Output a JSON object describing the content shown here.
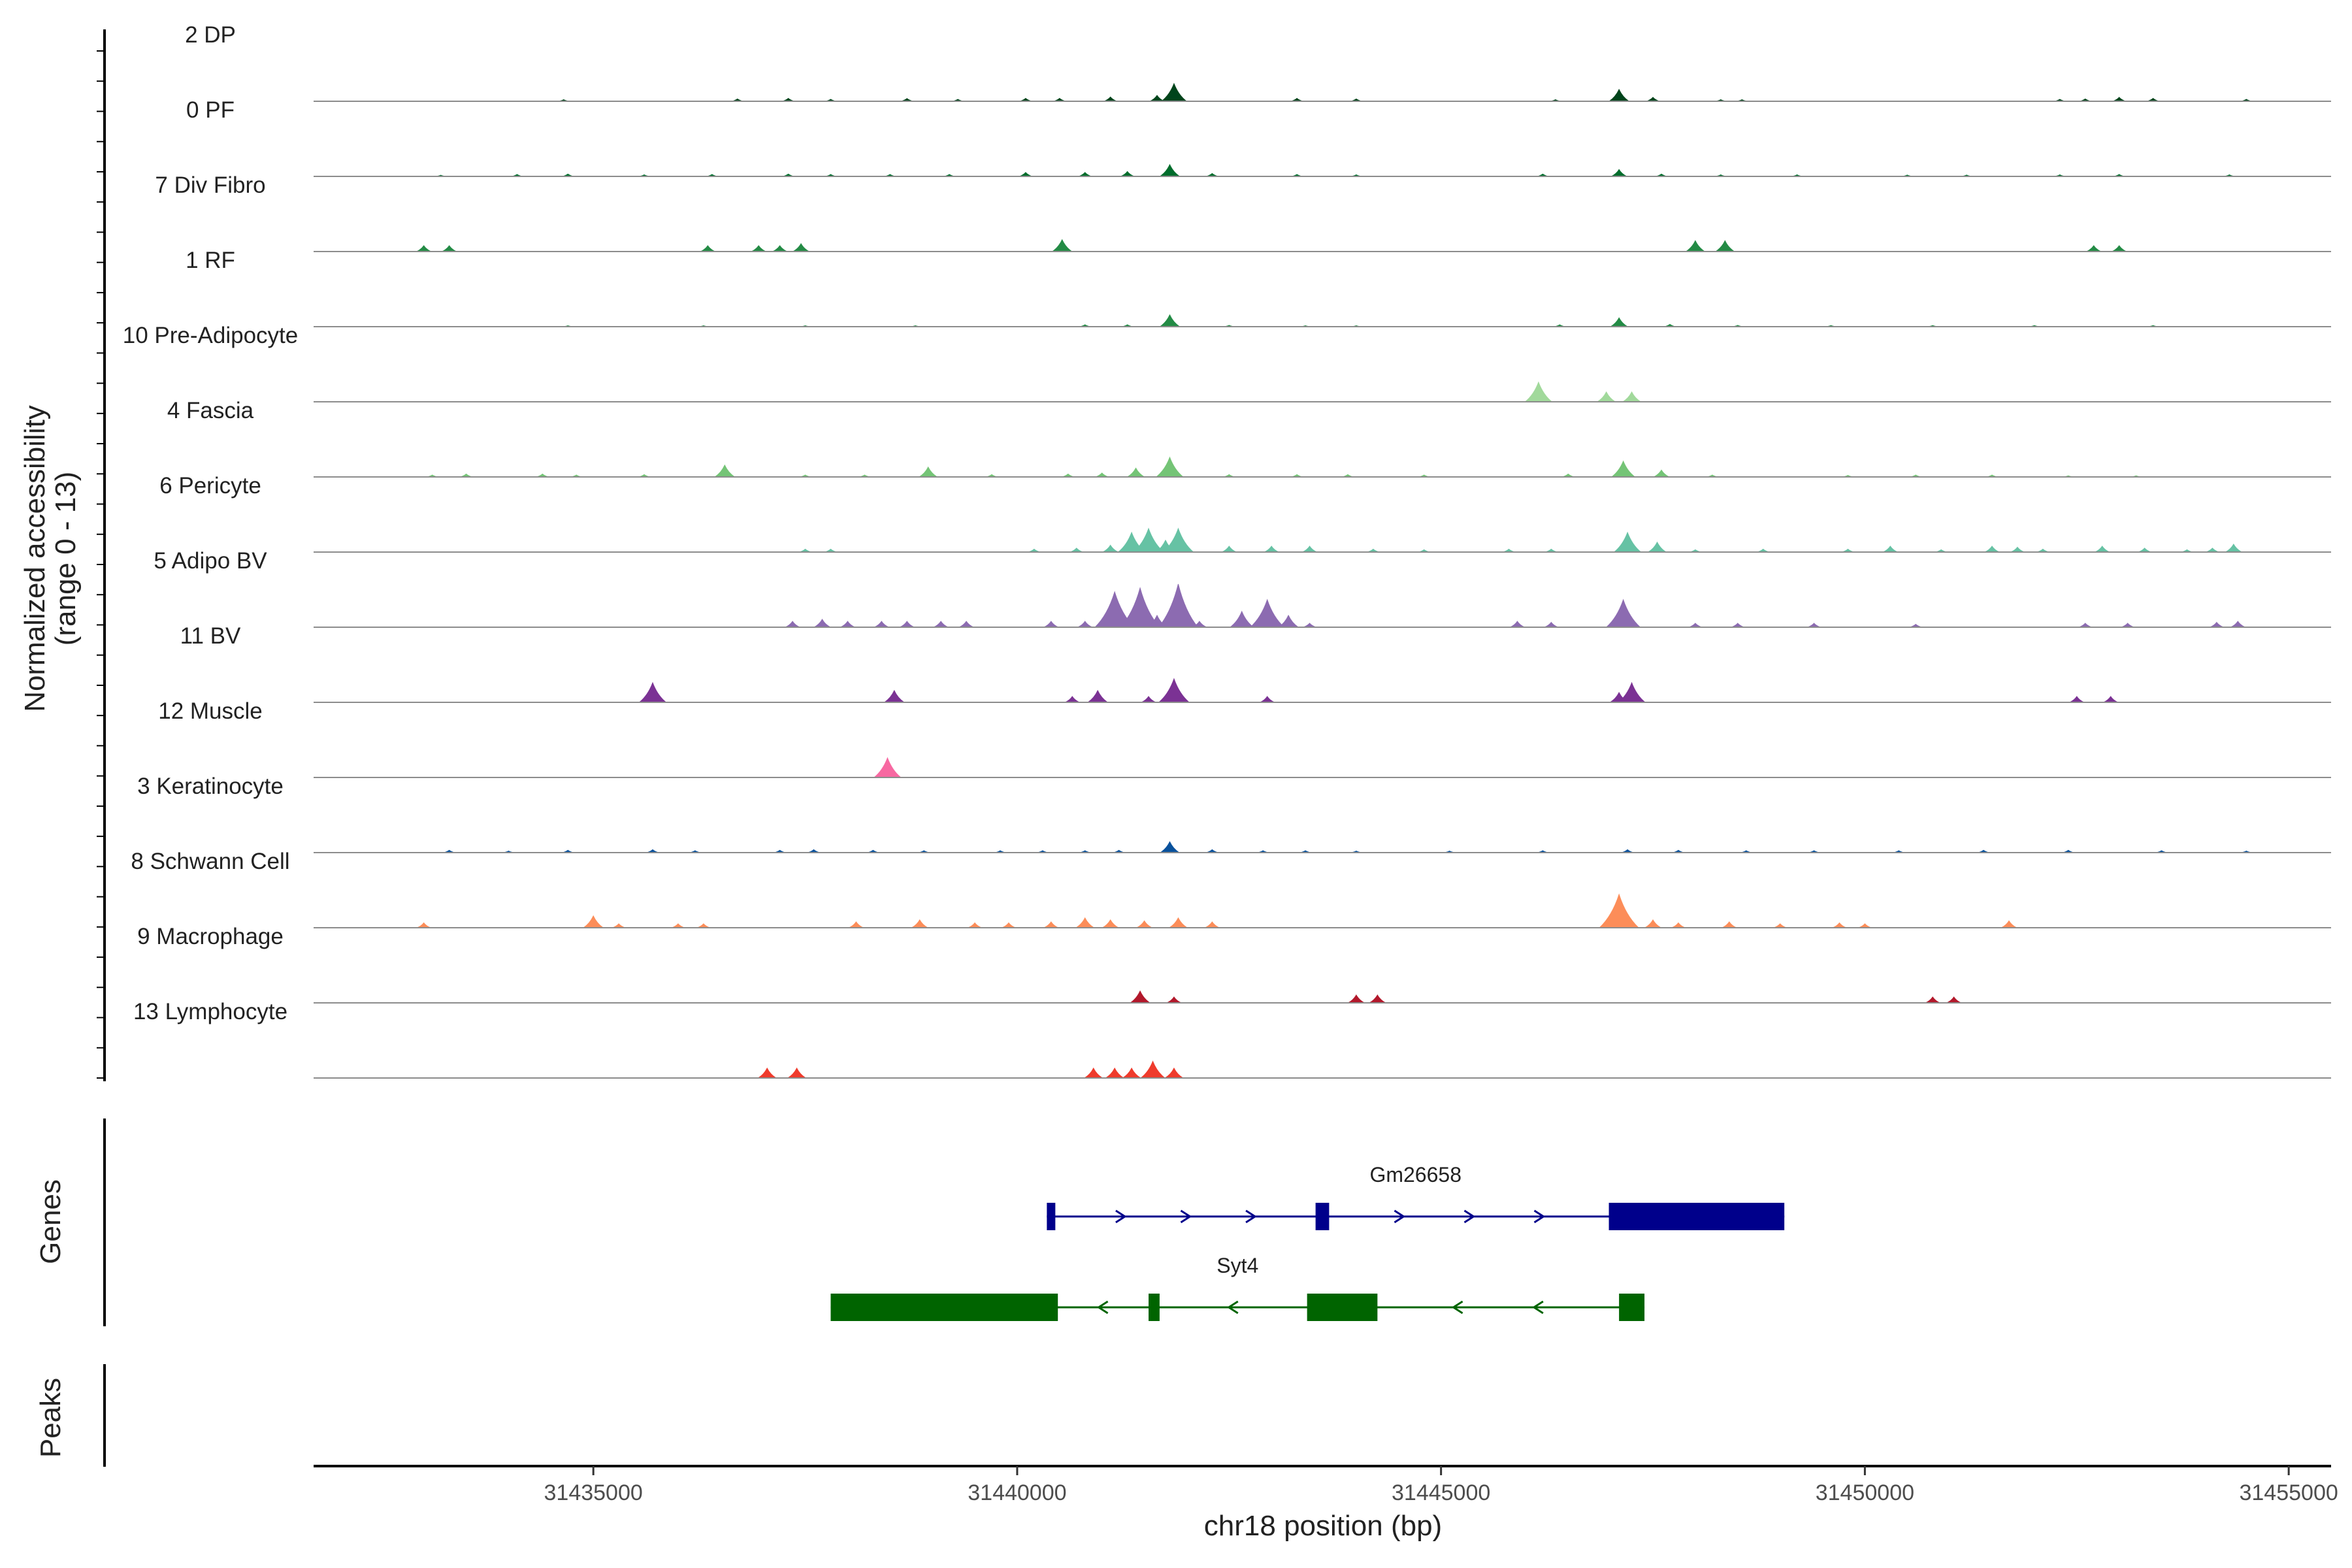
{
  "chart_data": {
    "type": "area",
    "title": "",
    "ylabel_line1": "Normalized accessibility",
    "ylabel_line2": "(range 0 - 13)",
    "xlabel": "chr18 position (bp)",
    "genes_label": "Genes",
    "peaks_label": "Peaks",
    "xlim": [
      31431700,
      31455500
    ],
    "x_ticks": [
      31435000,
      31440000,
      31445000,
      31450000,
      31455000
    ],
    "x_tick_labels": [
      "31435000",
      "31440000",
      "31445000",
      "31450000",
      "31455000"
    ],
    "tracks": [
      {
        "name": "2 DP",
        "color": "#00441b",
        "signal": [
          [
            31434650,
            0.08
          ],
          [
            31436700,
            0.12
          ],
          [
            31437300,
            0.15
          ],
          [
            31437800,
            0.1
          ],
          [
            31438700,
            0.14
          ],
          [
            31439300,
            0.1
          ],
          [
            31440100,
            0.15
          ],
          [
            31440500,
            0.15
          ],
          [
            31441100,
            0.22
          ],
          [
            31441650,
            0.3
          ],
          [
            31441850,
            0.9
          ],
          [
            31443300,
            0.15
          ],
          [
            31444000,
            0.12
          ],
          [
            31446350,
            0.08
          ],
          [
            31447100,
            0.6
          ],
          [
            31447500,
            0.2
          ],
          [
            31448300,
            0.08
          ],
          [
            31448550,
            0.08
          ],
          [
            31452300,
            0.1
          ],
          [
            31452600,
            0.12
          ],
          [
            31453000,
            0.2
          ],
          [
            31453400,
            0.15
          ],
          [
            31454500,
            0.1
          ]
        ]
      },
      {
        "name": "0 PF",
        "color": "#006d2c",
        "signal": [
          [
            31433200,
            0.06
          ],
          [
            31434100,
            0.1
          ],
          [
            31434700,
            0.12
          ],
          [
            31435600,
            0.08
          ],
          [
            31436400,
            0.1
          ],
          [
            31437300,
            0.12
          ],
          [
            31437800,
            0.1
          ],
          [
            31438500,
            0.1
          ],
          [
            31439200,
            0.1
          ],
          [
            31440100,
            0.2
          ],
          [
            31440800,
            0.2
          ],
          [
            31441300,
            0.25
          ],
          [
            31441800,
            0.6
          ],
          [
            31442300,
            0.15
          ],
          [
            31443300,
            0.1
          ],
          [
            31444000,
            0.08
          ],
          [
            31446200,
            0.12
          ],
          [
            31447100,
            0.35
          ],
          [
            31447600,
            0.12
          ],
          [
            31448300,
            0.08
          ],
          [
            31449200,
            0.08
          ],
          [
            31450500,
            0.07
          ],
          [
            31451200,
            0.07
          ],
          [
            31452300,
            0.08
          ],
          [
            31453000,
            0.1
          ],
          [
            31454300,
            0.08
          ]
        ]
      },
      {
        "name": "7 Div Fibro",
        "color": "#238b45",
        "signal": [
          [
            31433000,
            0.3
          ],
          [
            31433300,
            0.3
          ],
          [
            31436350,
            0.3
          ],
          [
            31436950,
            0.3
          ],
          [
            31437200,
            0.3
          ],
          [
            31437450,
            0.4
          ],
          [
            31440530,
            0.6
          ],
          [
            31448000,
            0.55
          ],
          [
            31448350,
            0.55
          ],
          [
            31452700,
            0.3
          ],
          [
            31453000,
            0.3
          ]
        ]
      },
      {
        "name": "1 RF",
        "color": "#238b45",
        "signal": [
          [
            31434700,
            0.05
          ],
          [
            31436300,
            0.05
          ],
          [
            31437500,
            0.05
          ],
          [
            31438800,
            0.05
          ],
          [
            31440800,
            0.1
          ],
          [
            31441300,
            0.1
          ],
          [
            31441800,
            0.6
          ],
          [
            31442500,
            0.07
          ],
          [
            31443400,
            0.05
          ],
          [
            31444000,
            0.05
          ],
          [
            31446400,
            0.1
          ],
          [
            31447100,
            0.45
          ],
          [
            31447700,
            0.12
          ],
          [
            31448500,
            0.07
          ],
          [
            31449600,
            0.06
          ],
          [
            31450800,
            0.06
          ],
          [
            31452000,
            0.06
          ],
          [
            31453400,
            0.06
          ]
        ]
      },
      {
        "name": "10 Pre-Adipocyte",
        "color": "#a1d99b",
        "signal": [
          [
            31446150,
            1.0
          ],
          [
            31446950,
            0.5
          ],
          [
            31447250,
            0.5
          ]
        ]
      },
      {
        "name": "4 Fascia",
        "color": "#74c476",
        "signal": [
          [
            31433100,
            0.1
          ],
          [
            31433500,
            0.15
          ],
          [
            31434400,
            0.15
          ],
          [
            31434800,
            0.1
          ],
          [
            31435600,
            0.12
          ],
          [
            31436550,
            0.6
          ],
          [
            31437500,
            0.1
          ],
          [
            31438200,
            0.1
          ],
          [
            31438950,
            0.5
          ],
          [
            31439700,
            0.12
          ],
          [
            31440600,
            0.15
          ],
          [
            31441000,
            0.2
          ],
          [
            31441400,
            0.45
          ],
          [
            31441800,
            1.0
          ],
          [
            31442500,
            0.12
          ],
          [
            31443300,
            0.12
          ],
          [
            31443900,
            0.12
          ],
          [
            31444800,
            0.1
          ],
          [
            31446500,
            0.15
          ],
          [
            31447150,
            0.8
          ],
          [
            31447600,
            0.35
          ],
          [
            31448200,
            0.1
          ],
          [
            31449800,
            0.08
          ],
          [
            31450600,
            0.1
          ],
          [
            31451500,
            0.1
          ],
          [
            31452400,
            0.06
          ],
          [
            31453200,
            0.06
          ]
        ]
      },
      {
        "name": "6 Pericyte",
        "color": "#66c2a4",
        "signal": [
          [
            31437500,
            0.15
          ],
          [
            31437800,
            0.15
          ],
          [
            31440200,
            0.15
          ],
          [
            31440700,
            0.2
          ],
          [
            31441100,
            0.35
          ],
          [
            31441350,
            1.0
          ],
          [
            31441550,
            1.2
          ],
          [
            31441750,
            0.6
          ],
          [
            31441900,
            1.2
          ],
          [
            31442500,
            0.3
          ],
          [
            31443000,
            0.3
          ],
          [
            31443450,
            0.3
          ],
          [
            31444200,
            0.15
          ],
          [
            31444800,
            0.12
          ],
          [
            31445800,
            0.15
          ],
          [
            31446300,
            0.15
          ],
          [
            31447200,
            1.0
          ],
          [
            31447550,
            0.5
          ],
          [
            31448000,
            0.12
          ],
          [
            31448800,
            0.15
          ],
          [
            31449800,
            0.15
          ],
          [
            31450300,
            0.3
          ],
          [
            31450900,
            0.12
          ],
          [
            31451500,
            0.3
          ],
          [
            31451800,
            0.25
          ],
          [
            31452100,
            0.15
          ],
          [
            31452800,
            0.3
          ],
          [
            31453300,
            0.2
          ],
          [
            31453800,
            0.12
          ],
          [
            31454100,
            0.2
          ],
          [
            31454350,
            0.4
          ]
        ]
      },
      {
        "name": "5 Adipo BV",
        "color": "#8c6bb1",
        "signal": [
          [
            31437350,
            0.3
          ],
          [
            31437700,
            0.4
          ],
          [
            31438000,
            0.3
          ],
          [
            31438400,
            0.3
          ],
          [
            31438700,
            0.3
          ],
          [
            31439100,
            0.3
          ],
          [
            31439400,
            0.3
          ],
          [
            31440400,
            0.3
          ],
          [
            31440800,
            0.3
          ],
          [
            31441150,
            1.8
          ],
          [
            31441450,
            2.0
          ],
          [
            31441650,
            0.6
          ],
          [
            31441900,
            2.2
          ],
          [
            31442150,
            0.3
          ],
          [
            31442650,
            0.8
          ],
          [
            31442950,
            1.4
          ],
          [
            31443200,
            0.6
          ],
          [
            31443450,
            0.2
          ],
          [
            31445900,
            0.3
          ],
          [
            31446300,
            0.25
          ],
          [
            31447150,
            1.4
          ],
          [
            31448000,
            0.2
          ],
          [
            31448500,
            0.2
          ],
          [
            31449400,
            0.2
          ],
          [
            31450600,
            0.15
          ],
          [
            31452600,
            0.2
          ],
          [
            31453100,
            0.2
          ],
          [
            31454150,
            0.25
          ],
          [
            31454400,
            0.3
          ]
        ]
      },
      {
        "name": "11 BV",
        "color": "#7b3294",
        "signal": [
          [
            31435700,
            1.0
          ],
          [
            31438550,
            0.6
          ],
          [
            31440650,
            0.3
          ],
          [
            31440950,
            0.6
          ],
          [
            31441550,
            0.3
          ],
          [
            31441850,
            1.2
          ],
          [
            31442950,
            0.3
          ],
          [
            31447100,
            0.5
          ],
          [
            31447250,
            1.0
          ],
          [
            31452500,
            0.3
          ],
          [
            31452900,
            0.3
          ]
        ]
      },
      {
        "name": "12 Muscle",
        "color": "#f768a1",
        "signal": [
          [
            31438470,
            1.0
          ]
        ]
      },
      {
        "name": "3 Keratinocyte",
        "color": "#08519c",
        "signal": [
          [
            31433300,
            0.12
          ],
          [
            31434000,
            0.08
          ],
          [
            31434700,
            0.12
          ],
          [
            31435700,
            0.15
          ],
          [
            31436200,
            0.1
          ],
          [
            31437200,
            0.12
          ],
          [
            31437600,
            0.15
          ],
          [
            31438300,
            0.12
          ],
          [
            31438900,
            0.1
          ],
          [
            31439800,
            0.1
          ],
          [
            31440300,
            0.1
          ],
          [
            31440800,
            0.1
          ],
          [
            31441200,
            0.12
          ],
          [
            31441800,
            0.55
          ],
          [
            31442300,
            0.15
          ],
          [
            31442900,
            0.1
          ],
          [
            31443400,
            0.1
          ],
          [
            31444000,
            0.08
          ],
          [
            31445100,
            0.08
          ],
          [
            31446200,
            0.1
          ],
          [
            31447200,
            0.15
          ],
          [
            31447800,
            0.12
          ],
          [
            31448600,
            0.1
          ],
          [
            31449400,
            0.1
          ],
          [
            31450400,
            0.1
          ],
          [
            31451400,
            0.12
          ],
          [
            31452400,
            0.12
          ],
          [
            31453500,
            0.1
          ],
          [
            31454500,
            0.08
          ]
        ]
      },
      {
        "name": "8 Schwann Cell",
        "color": "#fc8d59",
        "signal": [
          [
            31433000,
            0.25
          ],
          [
            31435000,
            0.6
          ],
          [
            31435300,
            0.2
          ],
          [
            31436000,
            0.2
          ],
          [
            31436300,
            0.2
          ],
          [
            31438100,
            0.3
          ],
          [
            31438850,
            0.4
          ],
          [
            31439500,
            0.25
          ],
          [
            31439900,
            0.25
          ],
          [
            31440400,
            0.3
          ],
          [
            31440800,
            0.5
          ],
          [
            31441100,
            0.4
          ],
          [
            31441500,
            0.35
          ],
          [
            31441900,
            0.5
          ],
          [
            31442300,
            0.3
          ],
          [
            31447100,
            1.7
          ],
          [
            31447500,
            0.4
          ],
          [
            31447800,
            0.25
          ],
          [
            31448400,
            0.3
          ],
          [
            31449000,
            0.2
          ],
          [
            31449700,
            0.25
          ],
          [
            31450000,
            0.2
          ],
          [
            31451700,
            0.35
          ]
        ]
      },
      {
        "name": "9 Macrophage",
        "color": "#b2182b",
        "signal": [
          [
            31441450,
            0.6
          ],
          [
            31441850,
            0.3
          ],
          [
            31444000,
            0.4
          ],
          [
            31444250,
            0.4
          ],
          [
            31450800,
            0.3
          ],
          [
            31451050,
            0.3
          ]
        ]
      },
      {
        "name": "13 Lymphocyte",
        "color": "#ef3b2c",
        "signal": [
          [
            31437050,
            0.5
          ],
          [
            31437400,
            0.5
          ],
          [
            31440900,
            0.5
          ],
          [
            31441150,
            0.5
          ],
          [
            31441350,
            0.5
          ],
          [
            31441600,
            0.85
          ],
          [
            31441850,
            0.5
          ]
        ]
      }
    ],
    "genes": [
      {
        "name": "Gm26658",
        "strand": "+",
        "color": "#00008b",
        "start": 31440350,
        "end": 31449050,
        "exons": [
          [
            31440350,
            31440450
          ],
          [
            31443520,
            31443680
          ],
          [
            31446980,
            31449050
          ]
        ]
      },
      {
        "name": "Syt4",
        "strand": "-",
        "color": "#006400",
        "start": 31437800,
        "end": 31447400,
        "exons": [
          [
            31437800,
            31440480
          ],
          [
            31441550,
            31441680
          ],
          [
            31443420,
            31444250
          ],
          [
            31447100,
            31447400
          ]
        ]
      }
    ],
    "peaks": []
  }
}
